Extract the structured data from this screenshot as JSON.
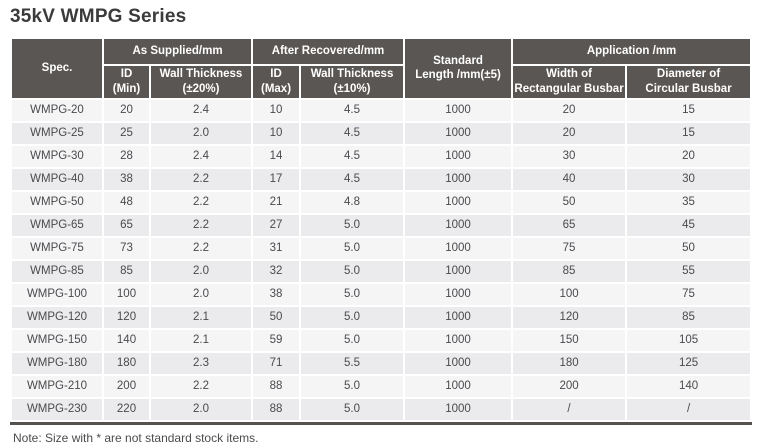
{
  "page": {
    "title": "35kV WMPG Series",
    "note": "Note: Size with * are not standard stock items."
  },
  "table": {
    "header": {
      "spec": "Spec.",
      "as_supplied": "As Supplied/mm",
      "after_recovered": "After Recovered/mm",
      "standard_length": "Standard\nLength /mm(±5)",
      "application": "Application /mm",
      "id_min": "ID\n(Min)",
      "wall_thickness_20": "Wall Thickness\n(±20%)",
      "id_max": "ID\n(Max)",
      "wall_thickness_10": "Wall Thickness\n(±10%)",
      "width_rect": "Width of\nRectangular Busbar",
      "diam_circ": "Diameter of\nCircular Busbar"
    },
    "rows": [
      [
        "WMPG-20",
        "20",
        "2.4",
        "10",
        "4.5",
        "1000",
        "20",
        "15"
      ],
      [
        "WMPG-25",
        "25",
        "2.0",
        "10",
        "4.5",
        "1000",
        "20",
        "15"
      ],
      [
        "WMPG-30",
        "28",
        "2.4",
        "14",
        "4.5",
        "1000",
        "30",
        "20"
      ],
      [
        "WMPG-40",
        "38",
        "2.2",
        "17",
        "4.5",
        "1000",
        "40",
        "30"
      ],
      [
        "WMPG-50",
        "48",
        "2.2",
        "21",
        "4.8",
        "1000",
        "50",
        "35"
      ],
      [
        "WMPG-65",
        "65",
        "2.2",
        "27",
        "5.0",
        "1000",
        "65",
        "45"
      ],
      [
        "WMPG-75",
        "73",
        "2.2",
        "31",
        "5.0",
        "1000",
        "75",
        "50"
      ],
      [
        "WMPG-85",
        "85",
        "2.0",
        "32",
        "5.0",
        "1000",
        "85",
        "55"
      ],
      [
        "WMPG-100",
        "100",
        "2.0",
        "38",
        "5.0",
        "1000",
        "100",
        "75"
      ],
      [
        "WMPG-120",
        "120",
        "2.1",
        "50",
        "5.0",
        "1000",
        "120",
        "85"
      ],
      [
        "WMPG-150",
        "140",
        "2.1",
        "59",
        "5.0",
        "1000",
        "150",
        "105"
      ],
      [
        "WMPG-180",
        "180",
        "2.3",
        "71",
        "5.5",
        "1000",
        "180",
        "125"
      ],
      [
        "WMPG-210",
        "200",
        "2.2",
        "88",
        "5.0",
        "1000",
        "200",
        "140"
      ],
      [
        "WMPG-230",
        "220",
        "2.0",
        "88",
        "5.0",
        "1000",
        "/",
        "/"
      ]
    ]
  },
  "colors": {
    "header_bg": "#5a5653",
    "header_text": "#ffffff",
    "row_light": "#f5f5f6",
    "row_dark": "#ebebed",
    "body_text": "#4a4a4e",
    "title_text": "#3b3b3b",
    "bottom_rule": "#55514d"
  }
}
